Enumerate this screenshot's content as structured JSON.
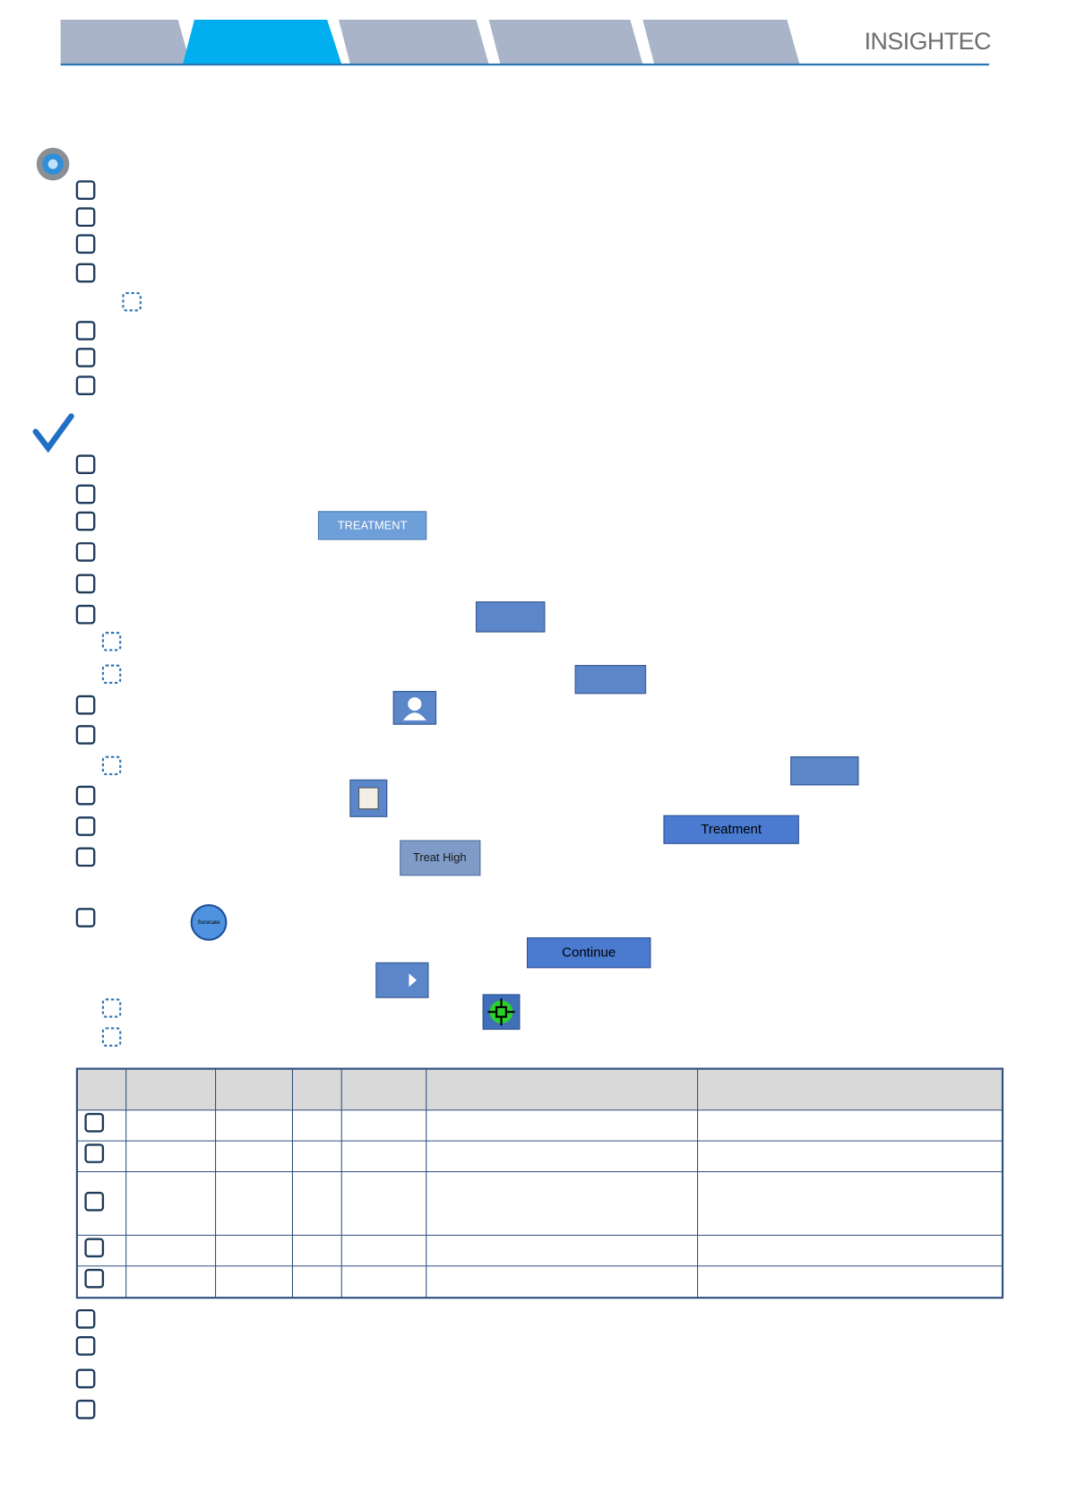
{
  "header": {
    "logo": "INSIGHTEC"
  },
  "buttons": {
    "treatment_caps": "TREATMENT",
    "treatment": "Treatment",
    "treat_high": "Treat High",
    "sonicate": "Sonicate",
    "continue": "Continue"
  }
}
